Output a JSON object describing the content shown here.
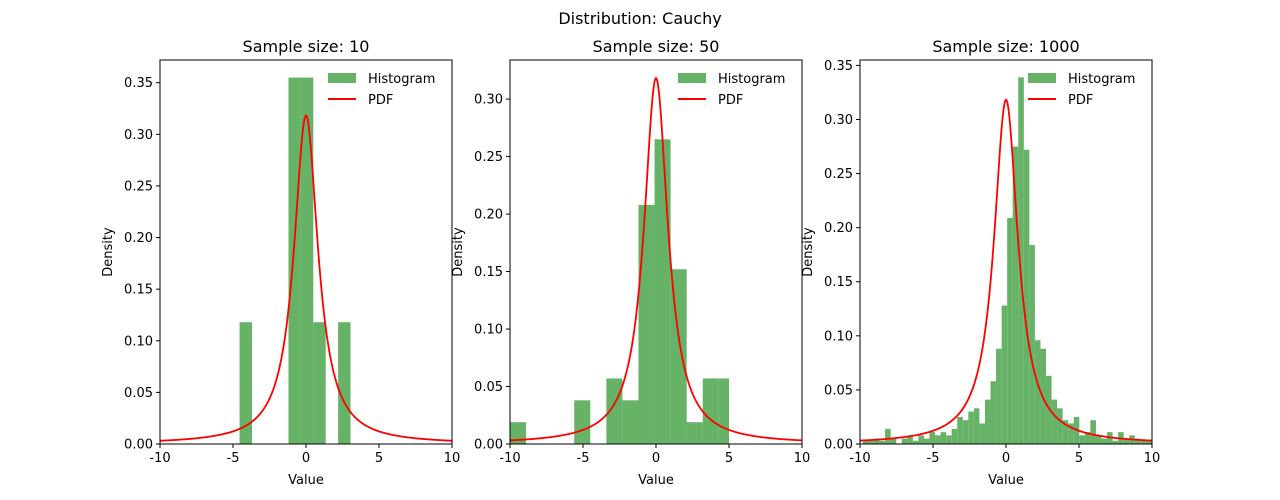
{
  "figure": {
    "title": "Distribution: Cauchy"
  },
  "colors": {
    "histogram": "#66b266",
    "pdf": "#ff0000",
    "axis": "#000000"
  },
  "chart_data": [
    {
      "type": "bar",
      "title": "Sample size: 10",
      "xlabel": "Value",
      "ylabel": "Density",
      "xlim": [
        -10,
        10
      ],
      "ylim": [
        0,
        0.372
      ],
      "xticks": [
        -10,
        -5,
        0,
        5,
        10
      ],
      "yticks": [
        "0.00",
        "0.05",
        "0.10",
        "0.15",
        "0.20",
        "0.25",
        "0.30",
        "0.35"
      ],
      "legend": {
        "placement": "top-right",
        "entries": [
          "Histogram",
          "PDF"
        ]
      },
      "series": [
        {
          "name": "Histogram",
          "type": "histogram",
          "bins": [
            {
              "x0": -4.55,
              "x1": -3.7,
              "value": 0.118
            },
            {
              "x0": -1.2,
              "x1": -0.35,
              "value": 0.355
            },
            {
              "x0": -0.35,
              "x1": 0.5,
              "value": 0.355
            },
            {
              "x0": 0.5,
              "x1": 1.35,
              "value": 0.118
            },
            {
              "x0": 2.2,
              "x1": 3.05,
              "value": 0.118
            }
          ]
        },
        {
          "name": "PDF",
          "type": "line",
          "function": "cauchy",
          "x0": 0,
          "gamma": 1
        }
      ]
    },
    {
      "type": "bar",
      "title": "Sample size: 50",
      "xlabel": "Value",
      "ylabel": "Density",
      "xlim": [
        -10,
        10
      ],
      "ylim": [
        0,
        0.334
      ],
      "xticks": [
        -10,
        -5,
        0,
        5,
        10
      ],
      "yticks": [
        "0.00",
        "0.05",
        "0.10",
        "0.15",
        "0.20",
        "0.25",
        "0.30"
      ],
      "legend": {
        "placement": "top-right",
        "entries": [
          "Histogram",
          "PDF"
        ]
      },
      "series": [
        {
          "name": "Histogram",
          "type": "histogram",
          "bins": [
            {
              "x0": -10.0,
              "x1": -8.9,
              "value": 0.019
            },
            {
              "x0": -5.6,
              "x1": -4.5,
              "value": 0.038
            },
            {
              "x0": -3.4,
              "x1": -2.3,
              "value": 0.057
            },
            {
              "x0": -2.3,
              "x1": -1.2,
              "value": 0.038
            },
            {
              "x0": -1.2,
              "x1": -0.1,
              "value": 0.208
            },
            {
              "x0": -0.1,
              "x1": 1.0,
              "value": 0.265
            },
            {
              "x0": 1.0,
              "x1": 2.1,
              "value": 0.152
            },
            {
              "x0": 2.1,
              "x1": 3.2,
              "value": 0.019
            },
            {
              "x0": 3.2,
              "x1": 4.3,
              "value": 0.057
            },
            {
              "x0": 4.3,
              "x1": 5.0,
              "value": 0.057
            }
          ]
        },
        {
          "name": "PDF",
          "type": "line",
          "function": "cauchy",
          "x0": 0,
          "gamma": 1
        }
      ]
    },
    {
      "type": "bar",
      "title": "Sample size: 1000",
      "xlabel": "Value",
      "ylabel": "Density",
      "xlim": [
        -10,
        10
      ],
      "ylim": [
        0,
        0.355
      ],
      "xticks": [
        -10,
        -5,
        0,
        5,
        10
      ],
      "yticks": [
        "0.00",
        "0.05",
        "0.10",
        "0.15",
        "0.20",
        "0.25",
        "0.30",
        "0.35"
      ],
      "legend": {
        "placement": "top-right",
        "entries": [
          "Histogram",
          "PDF"
        ]
      },
      "series": [
        {
          "name": "Histogram",
          "type": "histogram",
          "bin_start": -9.8,
          "bin_width": 0.38,
          "values": [
            0.003,
            0.003,
            0.005,
            0.003,
            0.014,
            0.005,
            0.0,
            0.005,
            0.008,
            0.003,
            0.008,
            0.005,
            0.011,
            0.008,
            0.011,
            0.008,
            0.014,
            0.025,
            0.022,
            0.03,
            0.033,
            0.019,
            0.041,
            0.058,
            0.088,
            0.128,
            0.209,
            0.275,
            0.339,
            0.272,
            0.184,
            0.096,
            0.088,
            0.063,
            0.041,
            0.033,
            0.022,
            0.019,
            0.025,
            0.008,
            0.011,
            0.022,
            0.008,
            0.005,
            0.011,
            0.003,
            0.011,
            0.005,
            0.008,
            0.005,
            0.003,
            0.003,
            0.003,
            0.003,
            0.008,
            0.005
          ]
        },
        {
          "name": "PDF",
          "type": "line",
          "function": "cauchy",
          "x0": 0,
          "gamma": 1
        }
      ]
    }
  ]
}
